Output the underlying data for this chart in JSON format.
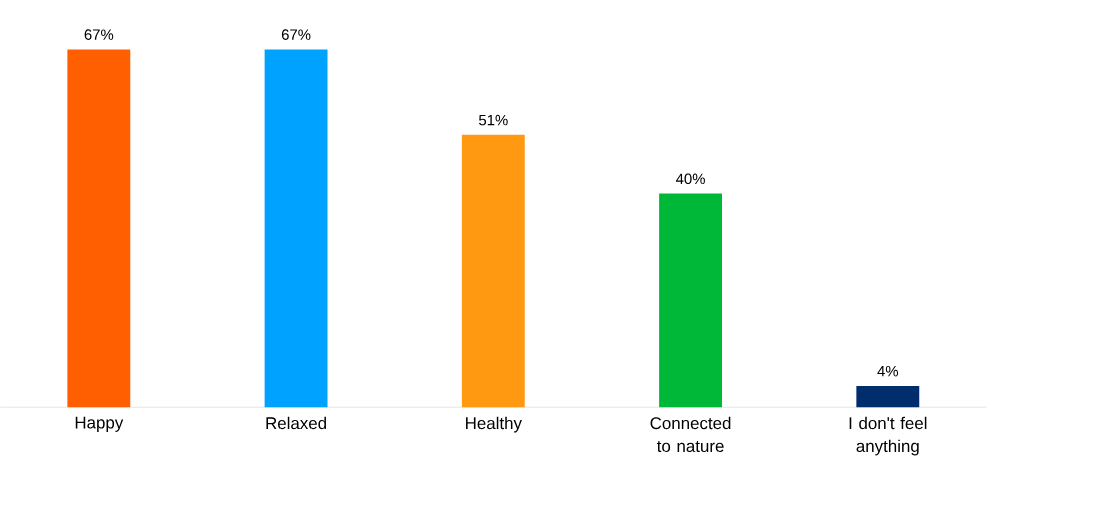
{
  "chart_data": {
    "type": "bar",
    "categories": [
      "Happy",
      "Relaxed",
      "Healthy",
      "Connected to nature",
      "I don't feel anything"
    ],
    "values": [
      67,
      67,
      51,
      40,
      4
    ],
    "colors": [
      "#ff5f00",
      "#00a2ff",
      "#ff9912",
      "#00b838",
      "#002d6b"
    ],
    "value_labels": [
      "67%",
      "67%",
      "51%",
      "40%",
      "4%"
    ]
  }
}
